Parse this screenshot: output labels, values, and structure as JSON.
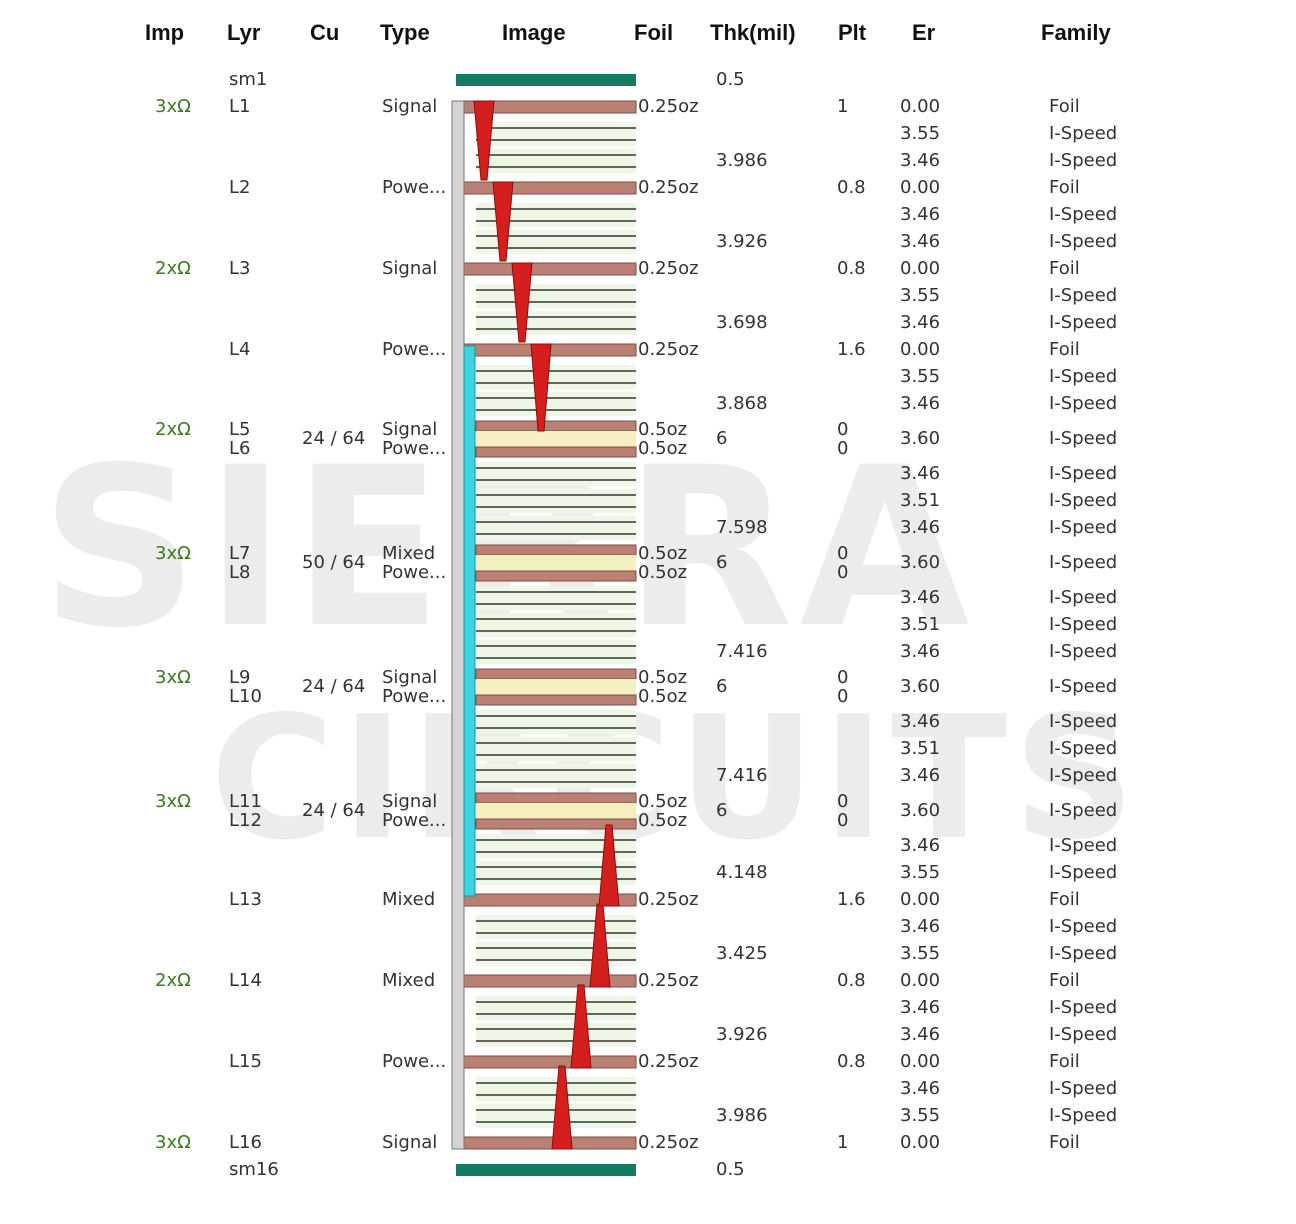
{
  "watermark": {
    "line1": "SIERRA",
    "line2": "CIRCUITS"
  },
  "headers": {
    "imp": "Imp",
    "lyr": "Lyr",
    "cu": "Cu",
    "type": "Type",
    "image": "Image",
    "foil": "Foil",
    "thk": "Thk(mil)",
    "plt": "Plt",
    "er": "Er",
    "family": "Family"
  },
  "colors": {
    "soldermask": "#157a64",
    "copper_foil": "#b98073",
    "copper_light": "#f6efc0",
    "dielectric": "#eef7e6",
    "via_backdrill": "#d51f1f",
    "blind_via": "#3dd4e2",
    "through_via": "#d4d4d4",
    "impedance_text": "#3a7a1e"
  },
  "rows": [
    {
      "lyr": "sm1",
      "thk": "0.5",
      "kind": "sm"
    },
    {
      "imp": "3xΩ",
      "lyr": "L1",
      "type": "Signal",
      "foil": "0.25oz",
      "plt": "1",
      "er": "0.00",
      "family": "Foil",
      "kind": "cu"
    },
    {
      "er": "3.55",
      "family": "I-Speed",
      "kind": "d"
    },
    {
      "thk": "3.986",
      "er": "3.46",
      "family": "I-Speed",
      "kind": "d"
    },
    {
      "lyr": "L2",
      "type": "Powe...",
      "foil": "0.25oz",
      "plt": "0.8",
      "er": "0.00",
      "family": "Foil",
      "kind": "cu"
    },
    {
      "er": "3.46",
      "family": "I-Speed",
      "kind": "d"
    },
    {
      "thk": "3.926",
      "er": "3.46",
      "family": "I-Speed",
      "kind": "d"
    },
    {
      "imp": "2xΩ",
      "lyr": "L3",
      "type": "Signal",
      "foil": "0.25oz",
      "plt": "0.8",
      "er": "0.00",
      "family": "Foil",
      "kind": "cu"
    },
    {
      "er": "3.55",
      "family": "I-Speed",
      "kind": "d"
    },
    {
      "thk": "3.698",
      "er": "3.46",
      "family": "I-Speed",
      "kind": "d"
    },
    {
      "lyr": "L4",
      "type": "Powe...",
      "foil": "0.25oz",
      "plt": "1.6",
      "er": "0.00",
      "family": "Foil",
      "kind": "cu"
    },
    {
      "er": "3.55",
      "family": "I-Speed",
      "kind": "d"
    },
    {
      "thk": "3.868",
      "er": "3.46",
      "family": "I-Speed",
      "kind": "d"
    },
    {
      "imp": "2xΩ",
      "lyr": "L5",
      "lyr2": "L6",
      "cu": "24 / 64",
      "type": "Signal",
      "type2": "Powe...",
      "foil": "0.5oz",
      "foil2": "0.5oz",
      "thk": "6",
      "plt": "0",
      "plt2": "0",
      "er": "3.60",
      "family": "I-Speed",
      "kind": "core"
    },
    {
      "er": "3.46",
      "family": "I-Speed",
      "kind": "d"
    },
    {
      "er": "3.51",
      "family": "I-Speed",
      "kind": "d"
    },
    {
      "thk": "7.598",
      "er": "3.46",
      "family": "I-Speed",
      "kind": "d"
    },
    {
      "imp": "3xΩ",
      "lyr": "L7",
      "lyr2": "L8",
      "cu": "50 / 64",
      "type": "Mixed",
      "type2": "Powe...",
      "foil": "0.5oz",
      "foil2": "0.5oz",
      "thk": "6",
      "plt": "0",
      "plt2": "0",
      "er": "3.60",
      "family": "I-Speed",
      "kind": "core"
    },
    {
      "er": "3.46",
      "family": "I-Speed",
      "kind": "d"
    },
    {
      "er": "3.51",
      "family": "I-Speed",
      "kind": "d"
    },
    {
      "thk": "7.416",
      "er": "3.46",
      "family": "I-Speed",
      "kind": "d"
    },
    {
      "imp": "3xΩ",
      "lyr": "L9",
      "lyr2": "L10",
      "cu": "24 / 64",
      "type": "Signal",
      "type2": "Powe...",
      "foil": "0.5oz",
      "foil2": "0.5oz",
      "thk": "6",
      "plt": "0",
      "plt2": "0",
      "er": "3.60",
      "family": "I-Speed",
      "kind": "core"
    },
    {
      "er": "3.46",
      "family": "I-Speed",
      "kind": "d"
    },
    {
      "er": "3.51",
      "family": "I-Speed",
      "kind": "d"
    },
    {
      "thk": "7.416",
      "er": "3.46",
      "family": "I-Speed",
      "kind": "d"
    },
    {
      "imp": "3xΩ",
      "lyr": "L11",
      "lyr2": "L12",
      "cu": "24 / 64",
      "type": "Signal",
      "type2": "Powe...",
      "foil": "0.5oz",
      "foil2": "0.5oz",
      "thk": "6",
      "plt": "0",
      "plt2": "0",
      "er": "3.60",
      "family": "I-Speed",
      "kind": "core"
    },
    {
      "er": "3.46",
      "family": "I-Speed",
      "kind": "d"
    },
    {
      "thk": "4.148",
      "er": "3.55",
      "family": "I-Speed",
      "kind": "d"
    },
    {
      "lyr": "L13",
      "type": "Mixed",
      "foil": "0.25oz",
      "plt": "1.6",
      "er": "0.00",
      "family": "Foil",
      "kind": "cu"
    },
    {
      "er": "3.46",
      "family": "I-Speed",
      "kind": "d"
    },
    {
      "thk": "3.425",
      "er": "3.55",
      "family": "I-Speed",
      "kind": "d"
    },
    {
      "imp": "2xΩ",
      "lyr": "L14",
      "type": "Mixed",
      "foil": "0.25oz",
      "plt": "0.8",
      "er": "0.00",
      "family": "Foil",
      "kind": "cu"
    },
    {
      "er": "3.46",
      "family": "I-Speed",
      "kind": "d"
    },
    {
      "thk": "3.926",
      "er": "3.46",
      "family": "I-Speed",
      "kind": "d"
    },
    {
      "lyr": "L15",
      "type": "Powe...",
      "foil": "0.25oz",
      "plt": "0.8",
      "er": "0.00",
      "family": "Foil",
      "kind": "cu"
    },
    {
      "er": "3.46",
      "family": "I-Speed",
      "kind": "d"
    },
    {
      "thk": "3.986",
      "er": "3.55",
      "family": "I-Speed",
      "kind": "d"
    },
    {
      "imp": "3xΩ",
      "lyr": "L16",
      "type": "Signal",
      "foil": "0.25oz",
      "plt": "1",
      "er": "0.00",
      "family": "Foil",
      "kind": "cu"
    },
    {
      "lyr": "sm16",
      "thk": "0.5",
      "kind": "sm"
    }
  ]
}
